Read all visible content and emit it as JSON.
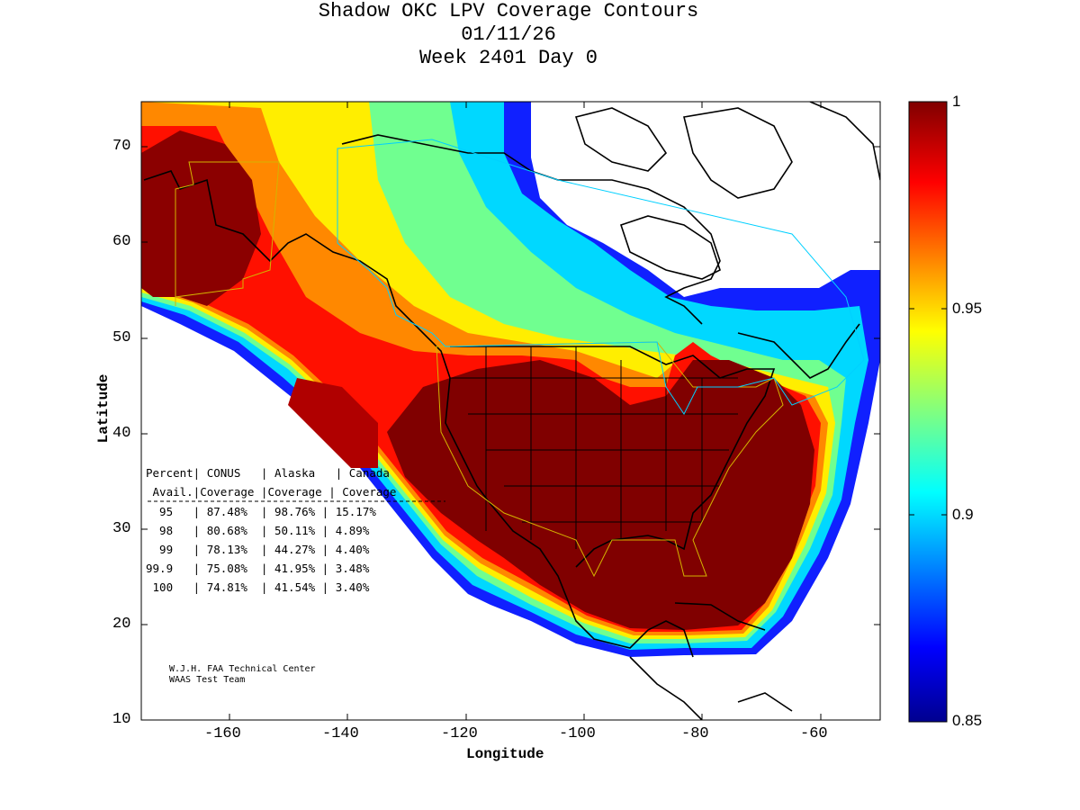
{
  "title": {
    "line1": "Shadow OKC LPV Coverage Contours",
    "line2": "01/11/26",
    "line3": "Week 2401 Day 0"
  },
  "axes": {
    "xlabel": "Longitude",
    "ylabel": "Latitude",
    "xticks": [
      "-160",
      "-140",
      "-120",
      "-100",
      "-80",
      "-60"
    ],
    "yticks": [
      "70",
      "60",
      "50",
      "40",
      "30",
      "20",
      "10"
    ]
  },
  "colorbar": {
    "ticks": [
      "1",
      "0.95",
      "0.9",
      "0.85"
    ]
  },
  "table": {
    "header1": "Percent| CONUS   | Alaska   | Canada",
    "header2": " Avail.|Coverage |Coverage | Coverage",
    "rows": [
      "  95   | 87.48%  | 98.76% | 15.17%",
      "  98   | 80.68%  | 50.11% | 4.89%",
      "  99   | 78.13%  | 44.27% | 4.40%",
      "99.9   | 75.08%  | 41.95% | 3.48%",
      " 100   | 74.81%  | 41.54% | 3.40%"
    ]
  },
  "credit": {
    "line1": "W.J.H. FAA Technical Center",
    "line2": "WAAS Test Team"
  },
  "chart_data": {
    "type": "heatmap",
    "title": "Shadow OKC LPV Coverage Contours 01/11/26 Week 2401 Day 0",
    "xlabel": "Longitude",
    "ylabel": "Latitude",
    "xlim": [
      -175,
      -50
    ],
    "ylim": [
      10,
      75
    ],
    "colorbar_range": [
      0.85,
      1.0
    ],
    "colormap": "jet",
    "coverage_percent": {
      "columns": [
        "Percent Avail.",
        "CONUS Coverage",
        "Alaska Coverage",
        "Canada Coverage"
      ],
      "rows": [
        [
          95,
          87.48,
          98.76,
          15.17
        ],
        [
          98,
          80.68,
          50.11,
          4.89
        ],
        [
          99,
          78.13,
          44.27,
          4.4
        ],
        [
          99.9,
          75.08,
          41.95,
          3.48
        ],
        [
          100,
          74.81,
          41.54,
          3.4
        ]
      ]
    }
  }
}
